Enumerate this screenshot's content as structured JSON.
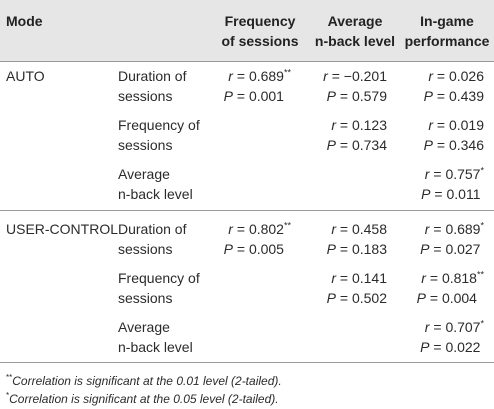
{
  "header": {
    "mode": "Mode",
    "col1": [
      "Frequency",
      "of sessions"
    ],
    "col2": [
      "Average",
      "n-back level"
    ],
    "col3": [
      "In-game",
      "performance"
    ]
  },
  "groups": [
    {
      "mode": "AUTO",
      "rows": [
        {
          "label": [
            "Duration of",
            "sessions"
          ],
          "cells": [
            {
              "r": "0.689",
              "r_sig": "**",
              "p": "0.001"
            },
            {
              "r": "−0.201",
              "r_sig": "",
              "p": "0.579"
            },
            {
              "r": "0.026",
              "r_sig": "",
              "p": "0.439"
            }
          ]
        },
        {
          "label": [
            "Frequency of",
            "sessions"
          ],
          "cells": [
            null,
            {
              "r": "0.123",
              "r_sig": "",
              "p": "0.734"
            },
            {
              "r": "0.019",
              "r_sig": "",
              "p": "0.346"
            }
          ]
        },
        {
          "label": [
            "Average",
            "n-back level"
          ],
          "cells": [
            null,
            null,
            {
              "r": "0.757",
              "r_sig": "*",
              "p": "0.011"
            }
          ]
        }
      ]
    },
    {
      "mode": "USER-CONTROL",
      "rows": [
        {
          "label": [
            "Duration of",
            "sessions"
          ],
          "cells": [
            {
              "r": "0.802",
              "r_sig": "**",
              "p": "0.005"
            },
            {
              "r": "0.458",
              "r_sig": "",
              "p": "0.183"
            },
            {
              "r": "0.689",
              "r_sig": "*",
              "p": "0.027"
            }
          ]
        },
        {
          "label": [
            "Frequency of",
            "sessions"
          ],
          "cells": [
            null,
            {
              "r": "0.141",
              "r_sig": "",
              "p": "0.502"
            },
            {
              "r": "0.818",
              "r_sig": "**",
              "p": "0.004"
            }
          ]
        },
        {
          "label": [
            "Average",
            "n-back level"
          ],
          "cells": [
            null,
            null,
            {
              "r": "0.707",
              "r_sig": "*",
              "p": "0.022"
            }
          ]
        }
      ]
    }
  ],
  "symbols": {
    "r": "r",
    "p": "P",
    "eq": " = "
  },
  "footnotes": [
    {
      "mark": "**",
      "text": "Correlation is significant at the 0.01 level (2-tailed)."
    },
    {
      "mark": "*",
      "text": "Correlation is significant at the 0.05 level (2-tailed)."
    }
  ]
}
